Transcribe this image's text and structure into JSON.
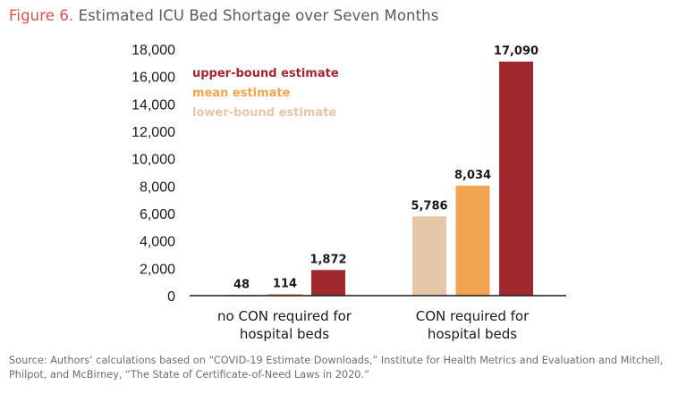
{
  "figure": {
    "label": "Figure 6.",
    "title": "Estimated ICU Bed Shortage over Seven Months"
  },
  "source": "Source: Authors’ calculations based on “COVID-19 Estimate Downloads,” Institute for Health Metrics and Evaluation and Mitchell, Philpot, and McBirney, “The State of Certificate-of-Need Laws in 2020.”",
  "chart_data": {
    "type": "bar",
    "title": "Estimated ICU Bed Shortage over Seven Months",
    "xlabel": "",
    "ylabel": "",
    "ylim": [
      0,
      18000
    ],
    "yticks": [
      0,
      2000,
      4000,
      6000,
      8000,
      10000,
      12000,
      14000,
      16000,
      18000
    ],
    "ytick_labels": [
      "0",
      "2,000",
      "4,000",
      "6,000",
      "8,000",
      "10,000",
      "12,000",
      "14,000",
      "16,000",
      "18,000"
    ],
    "grid": false,
    "legend_position": "top-left",
    "categories": [
      [
        "no CON required for",
        "hospital beds"
      ],
      [
        "CON required for",
        "hospital beds"
      ]
    ],
    "series": [
      {
        "name": "lower-bound estimate",
        "color": "#e5c7a8",
        "values": [
          48,
          5786
        ],
        "labels": [
          "48",
          "5,786"
        ]
      },
      {
        "name": "mean estimate",
        "color": "#f2a451",
        "values": [
          114,
          8034
        ],
        "labels": [
          "114",
          "8,034"
        ]
      },
      {
        "name": "upper-bound estimate",
        "color": "#a0282e",
        "values": [
          1872,
          17090
        ],
        "labels": [
          "1,872",
          "17,090"
        ]
      }
    ],
    "legend_order": [
      "upper-bound estimate",
      "mean estimate",
      "lower-bound estimate"
    ]
  }
}
